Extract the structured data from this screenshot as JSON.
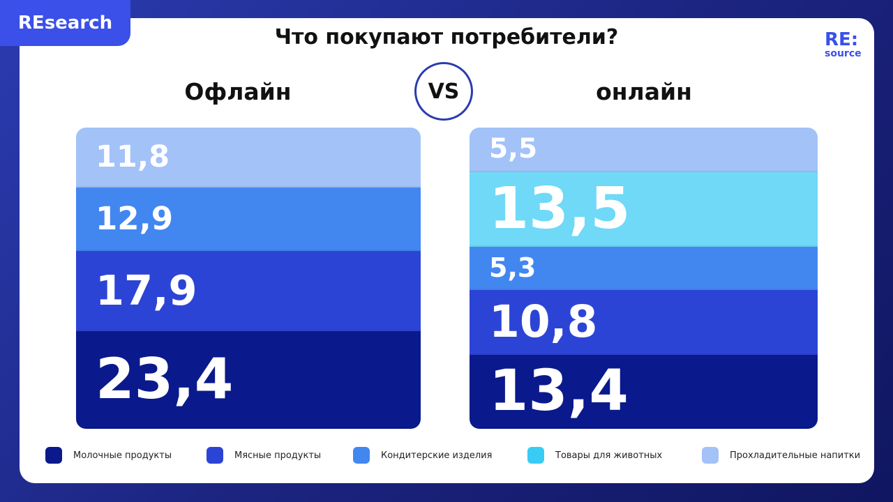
{
  "badge": "REsearch",
  "title": "Что покупают потребители?",
  "logo": {
    "line1": "RE:",
    "line2": "source"
  },
  "vs": "VS",
  "chart_data": {
    "type": "bar",
    "stacked": true,
    "categories": [
      "Офлайн",
      "онлайн"
    ],
    "series": [
      {
        "name": "Молочные продукты",
        "color": "#0a1a8c",
        "values": [
          23.4,
          13.4
        ],
        "labels": [
          "23,4",
          "13,4"
        ]
      },
      {
        "name": "Мясные продукты",
        "color": "#2c44d6",
        "values": [
          17.9,
          10.8
        ],
        "labels": [
          "17,9",
          "10,8"
        ]
      },
      {
        "name": "Кондитерские изделия",
        "color": "#4287f0",
        "values": [
          12.9,
          5.3
        ],
        "labels": [
          "12,9",
          "5,3"
        ]
      },
      {
        "name": "Товары для животных",
        "color": "#6fd9f7",
        "legend_color": "#38ccf5",
        "values": [
          null,
          13.5
        ],
        "labels": [
          "",
          "13,5"
        ]
      },
      {
        "name": "Прохладительные напитки",
        "color": "#a2c2f8",
        "values": [
          11.8,
          5.5
        ],
        "labels": [
          "11,8",
          "5,5"
        ]
      }
    ],
    "legend": "bottom"
  }
}
